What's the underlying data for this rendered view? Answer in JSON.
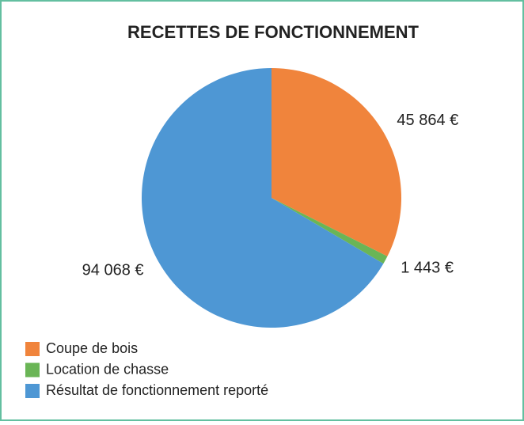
{
  "chart_data": {
    "type": "pie",
    "title": "RECETTES DE FONCTIONNEMENT",
    "categories": [
      "Coupe de bois",
      "Location de chasse",
      "Résultat de fonctionnement reporté"
    ],
    "values": [
      45864,
      1443,
      94068
    ],
    "value_labels": [
      "45 864 €",
      "1 443 €",
      "94 068 €"
    ],
    "colors": [
      "#f0843c",
      "#6ab556",
      "#4e97d4"
    ],
    "legend": "bottom-left"
  }
}
